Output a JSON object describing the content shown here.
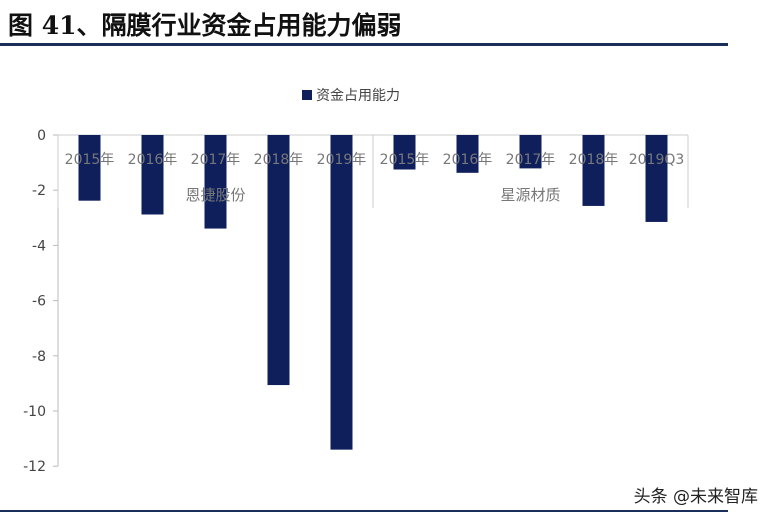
{
  "title": "图 41、隔膜行业资金占用能力偏弱",
  "watermark": "头条 @未来智库",
  "chart_data": {
    "type": "bar",
    "title": "",
    "legend": {
      "position": "top",
      "entries": [
        "资金占用能力"
      ]
    },
    "groups": [
      {
        "name": "恩捷股份",
        "categories": [
          "2015年",
          "2016年",
          "2017年",
          "2018年",
          "2019年"
        ],
        "values": [
          -2.38,
          -2.88,
          -3.39,
          -9.06,
          -11.4
        ]
      },
      {
        "name": "星源材质",
        "categories": [
          "2015年",
          "2016年",
          "2017年",
          "2018年",
          "2019Q3"
        ],
        "values": [
          -1.25,
          -1.37,
          -1.21,
          -2.57,
          -3.15
        ]
      }
    ],
    "series": [
      {
        "name": "资金占用能力",
        "color": "#0f1f5c"
      }
    ],
    "ylim": [
      -12,
      0
    ],
    "yticks": [
      0,
      -2,
      -4,
      -6,
      -8,
      -10,
      -12
    ],
    "grid": false
  }
}
